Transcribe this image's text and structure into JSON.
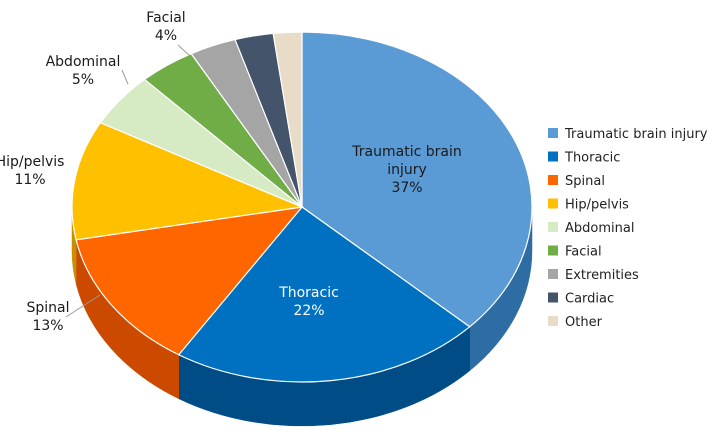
{
  "chart_data": {
    "type": "pie",
    "style": "3d",
    "title": "",
    "legend_position": "right",
    "categories": [
      "Traumatic brain injury",
      "Thoracic",
      "Spinal",
      "Hip/pelvis",
      "Abdominal",
      "Facial",
      "Extremities",
      "Cardiac",
      "Other"
    ],
    "values": [
      37,
      22,
      13,
      11,
      5,
      4,
      3.3,
      2.7,
      2
    ],
    "data_labels": [
      {
        "category": "Traumatic brain injury",
        "lines": [
          "Traumatic brain",
          "injury",
          "37%"
        ]
      },
      {
        "category": "Thoracic",
        "lines": [
          "Thoracic",
          "22%"
        ]
      },
      {
        "category": "Spinal",
        "lines": [
          "Spinal",
          "13%"
        ]
      },
      {
        "category": "Hip/pelvis",
        "lines": [
          "Hip/pelvis",
          "11%"
        ]
      },
      {
        "category": "Abdominal",
        "lines": [
          "Abdominal",
          "5%"
        ]
      },
      {
        "category": "Facial",
        "lines": [
          "Facial",
          "4%"
        ]
      }
    ],
    "colors": [
      "#5B9BD5",
      "#0070C0",
      "#FF6600",
      "#FFC000",
      "#D6EAC4",
      "#70AD47",
      "#A5A5A5",
      "#44546A",
      "#E8DCC8"
    ],
    "side_colors": [
      "#2E6DA4",
      "#004C86",
      "#CC4A00",
      "#C98F00",
      "#A9C497",
      "#4E8231",
      "#7A7A7A",
      "#2B3644",
      "#BFB29E"
    ]
  }
}
